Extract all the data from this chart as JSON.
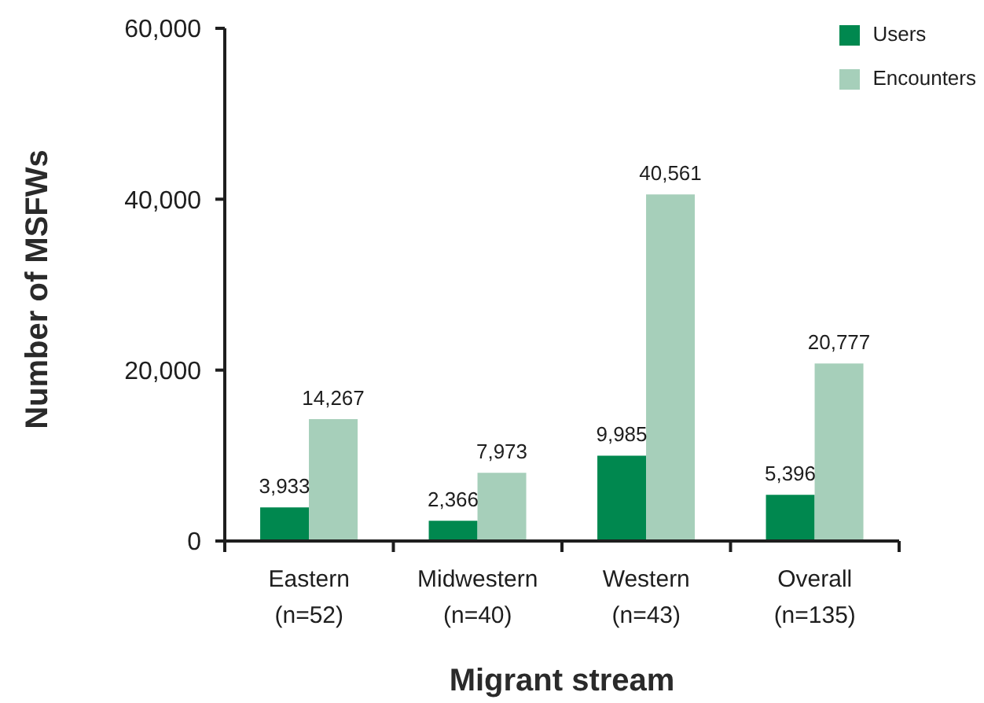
{
  "chart_data": {
    "type": "bar",
    "xlabel": "Migrant stream",
    "ylabel": "Number of MSFWs",
    "categories": [
      "Eastern (n=52)",
      "Midwestern (n=40)",
      "Western (n=43)",
      "Overall (n=135)"
    ],
    "series": [
      {
        "name": "Users",
        "color": "#00884f",
        "values": [
          3933,
          2366,
          9985,
          5396
        ],
        "value_labels": [
          "3,933",
          "2,366",
          "9,985",
          "5,396"
        ]
      },
      {
        "name": "Encounters",
        "color": "#a6cfba",
        "values": [
          14267,
          7973,
          40561,
          20777
        ],
        "value_labels": [
          "14,267",
          "7,973",
          "40,561",
          "20,777"
        ]
      }
    ],
    "ylim": [
      0,
      60000
    ],
    "yticks": [
      0,
      {
        "value": 20000,
        "label": "20,000"
      },
      {
        "value": 40000,
        "label": "40,000"
      },
      {
        "value": 60000,
        "label": "60,000"
      }
    ],
    "legend": "top right",
    "grid": false
  }
}
